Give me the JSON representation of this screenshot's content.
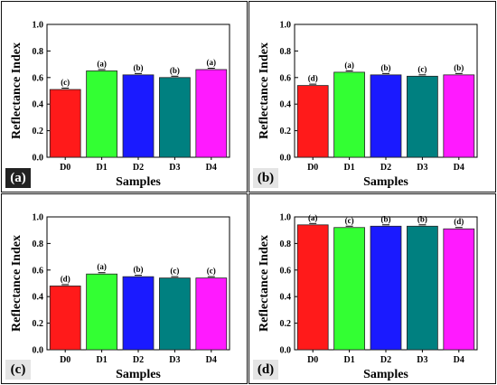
{
  "panels": [
    {
      "id": "a",
      "label": "(a)",
      "label_style": "dark"
    },
    {
      "id": "b",
      "label": "(b)",
      "label_style": "light"
    },
    {
      "id": "c",
      "label": "(c)",
      "label_style": "light"
    },
    {
      "id": "d",
      "label": "(d)",
      "label_style": "light"
    }
  ],
  "chart_data": [
    {
      "type": "bar",
      "panel": "(a)",
      "categories": [
        "D0",
        "D1",
        "D2",
        "D3",
        "D4"
      ],
      "values": [
        0.51,
        0.65,
        0.62,
        0.6,
        0.66
      ],
      "letters": [
        "(c)",
        "(a)",
        "(b)",
        "(b)",
        "(a)"
      ],
      "xlabel": "Samples",
      "ylabel": "Reflectance Index",
      "ylim": [
        0,
        1.0
      ],
      "yticks": [
        "0.0",
        "0.2",
        "0.4",
        "0.6",
        "0.8",
        "1.0"
      ],
      "colors": [
        "#ff1a1a",
        "#33ff33",
        "#1a1aff",
        "#008080",
        "#ff1aff"
      ]
    },
    {
      "type": "bar",
      "panel": "(b)",
      "categories": [
        "D0",
        "D1",
        "D2",
        "D3",
        "D4"
      ],
      "values": [
        0.54,
        0.64,
        0.62,
        0.61,
        0.62
      ],
      "letters": [
        "(d)",
        "(a)",
        "(b)",
        "(c)",
        "(b)"
      ],
      "xlabel": "Samples",
      "ylabel": "Reflectance Index",
      "ylim": [
        0,
        1.0
      ],
      "yticks": [
        "0.0",
        "0.2",
        "0.4",
        "0.6",
        "0.8",
        "1.0"
      ],
      "colors": [
        "#ff1a1a",
        "#33ff33",
        "#1a1aff",
        "#008080",
        "#ff1aff"
      ]
    },
    {
      "type": "bar",
      "panel": "(c)",
      "categories": [
        "D0",
        "D1",
        "D2",
        "D3",
        "D4"
      ],
      "values": [
        0.48,
        0.57,
        0.55,
        0.54,
        0.54
      ],
      "letters": [
        "(d)",
        "(a)",
        "(b)",
        "(c)",
        "(c)"
      ],
      "xlabel": "Samples",
      "ylabel": "Reflectance Index",
      "ylim": [
        0,
        1.0
      ],
      "yticks": [
        "0.0",
        "0.2",
        "0.4",
        "0.6",
        "0.8",
        "1.0"
      ],
      "colors": [
        "#ff1a1a",
        "#33ff33",
        "#1a1aff",
        "#008080",
        "#ff1aff"
      ]
    },
    {
      "type": "bar",
      "panel": "(d)",
      "categories": [
        "D0",
        "D1",
        "D2",
        "D3",
        "D4"
      ],
      "values": [
        0.94,
        0.92,
        0.93,
        0.93,
        0.91
      ],
      "letters": [
        "(a)",
        "(c)",
        "(b)",
        "(b)",
        "(d)"
      ],
      "xlabel": "Samples",
      "ylabel": "Reflectance Index",
      "ylim": [
        0,
        1.0
      ],
      "yticks": [
        "0.0",
        "0.2",
        "0.4",
        "0.6",
        "0.8",
        "1.0"
      ],
      "colors": [
        "#ff1a1a",
        "#33ff33",
        "#1a1aff",
        "#008080",
        "#ff1aff"
      ]
    }
  ]
}
